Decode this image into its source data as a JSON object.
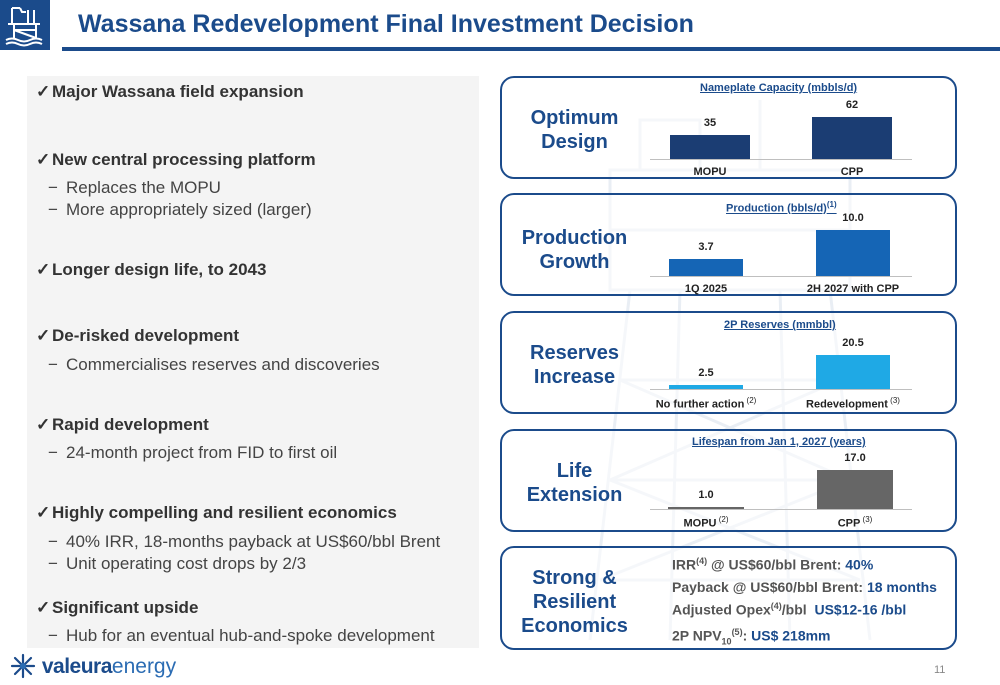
{
  "header": {
    "title": "Wassana Redevelopment Final Investment Decision",
    "logo_icon": "offshore-platform-icon"
  },
  "left": {
    "bullets": [
      {
        "text": "Major Wassana field expansion",
        "subs": []
      },
      {
        "text": "New central processing platform",
        "subs": [
          "Replaces the MOPU",
          "More appropriately sized (larger)"
        ]
      },
      {
        "text": "Longer design life, to 2043",
        "subs": []
      },
      {
        "text": "De-risked development",
        "subs": [
          "Commercialises reserves and discoveries"
        ]
      },
      {
        "text": "Rapid development",
        "subs": [
          "24-month project from FID to first oil"
        ]
      },
      {
        "text": "Highly compelling and resilient economics",
        "subs": [
          "40% IRR, 18-months payback at US$60/bbl Brent",
          "Unit operating cost drops by 2/3"
        ]
      },
      {
        "text": "Significant upside",
        "subs": [
          "Hub for an eventual hub-and-spoke development"
        ]
      }
    ],
    "check_glyph": "✓",
    "dash_glyph": "−"
  },
  "cards": {
    "optimum": {
      "label_line1": "Optimum",
      "label_line2": "Design"
    },
    "production": {
      "label_line1": "Production",
      "label_line2": "Growth"
    },
    "reserves": {
      "label_line1": "Reserves",
      "label_line2": "Increase"
    },
    "life": {
      "label_line1": "Life",
      "label_line2": "Extension"
    },
    "economics": {
      "label_line1": "Strong &",
      "label_line2": "Resilient",
      "label_line3": "Economics"
    }
  },
  "chart_data": [
    {
      "type": "bar",
      "title": "Nameplate Capacity (mbbls/d)",
      "categories": [
        "MOPU",
        "CPP"
      ],
      "values": [
        35,
        62
      ],
      "value_labels": [
        "35",
        "62"
      ],
      "colors": [
        "#1b3d73",
        "#1b3d73"
      ]
    },
    {
      "type": "bar",
      "title": "Production (bbls/d)",
      "title_sup": "(1)",
      "categories": [
        "1Q 2025",
        "2H 2027 with CPP"
      ],
      "values": [
        3.7,
        10.0
      ],
      "value_labels": [
        "3.7",
        "10.0"
      ],
      "colors": [
        "#1565b5",
        "#1565b5"
      ]
    },
    {
      "type": "bar",
      "title": "2P Reserves (mmbbl)",
      "categories": [
        "No further action",
        "Redevelopment"
      ],
      "category_sups": [
        "(2)",
        "(3)"
      ],
      "values": [
        2.5,
        20.5
      ],
      "value_labels": [
        "2.5",
        "20.5"
      ],
      "colors": [
        "#1fa9e5",
        "#1fa9e5"
      ]
    },
    {
      "type": "bar",
      "title": "Lifespan from Jan 1, 2027 (years)",
      "categories": [
        "MOPU",
        "CPP"
      ],
      "category_sups": [
        "(2)",
        "(3)"
      ],
      "values": [
        1.0,
        17.0
      ],
      "value_labels": [
        "1.0",
        "17.0"
      ],
      "colors": [
        "#666666",
        "#666666"
      ]
    }
  ],
  "economics": [
    {
      "pre": "IRR",
      "sup": "(4)",
      "mid": " @ US$60/bbl Brent: ",
      "value": "40%"
    },
    {
      "pre": "Payback @ US$60/bbl Brent: ",
      "value": "18 months"
    },
    {
      "pre": "Adjusted Opex",
      "sup": "(4)",
      "mid": "/bbl  ",
      "value": "US$12-16 /bbl"
    },
    {
      "pre": "2P NPV",
      "sub": "10",
      "sup": "(5)",
      "mid": ": ",
      "value": "US$ 218mm"
    }
  ],
  "footer": {
    "brand_part1": "valeura",
    "brand_part2": "energy",
    "logo_icon": "valeura-star-icon",
    "page_number": "11"
  },
  "colors": {
    "primary": "#1b4b8b",
    "panel_bg": "#f4f4f4"
  }
}
